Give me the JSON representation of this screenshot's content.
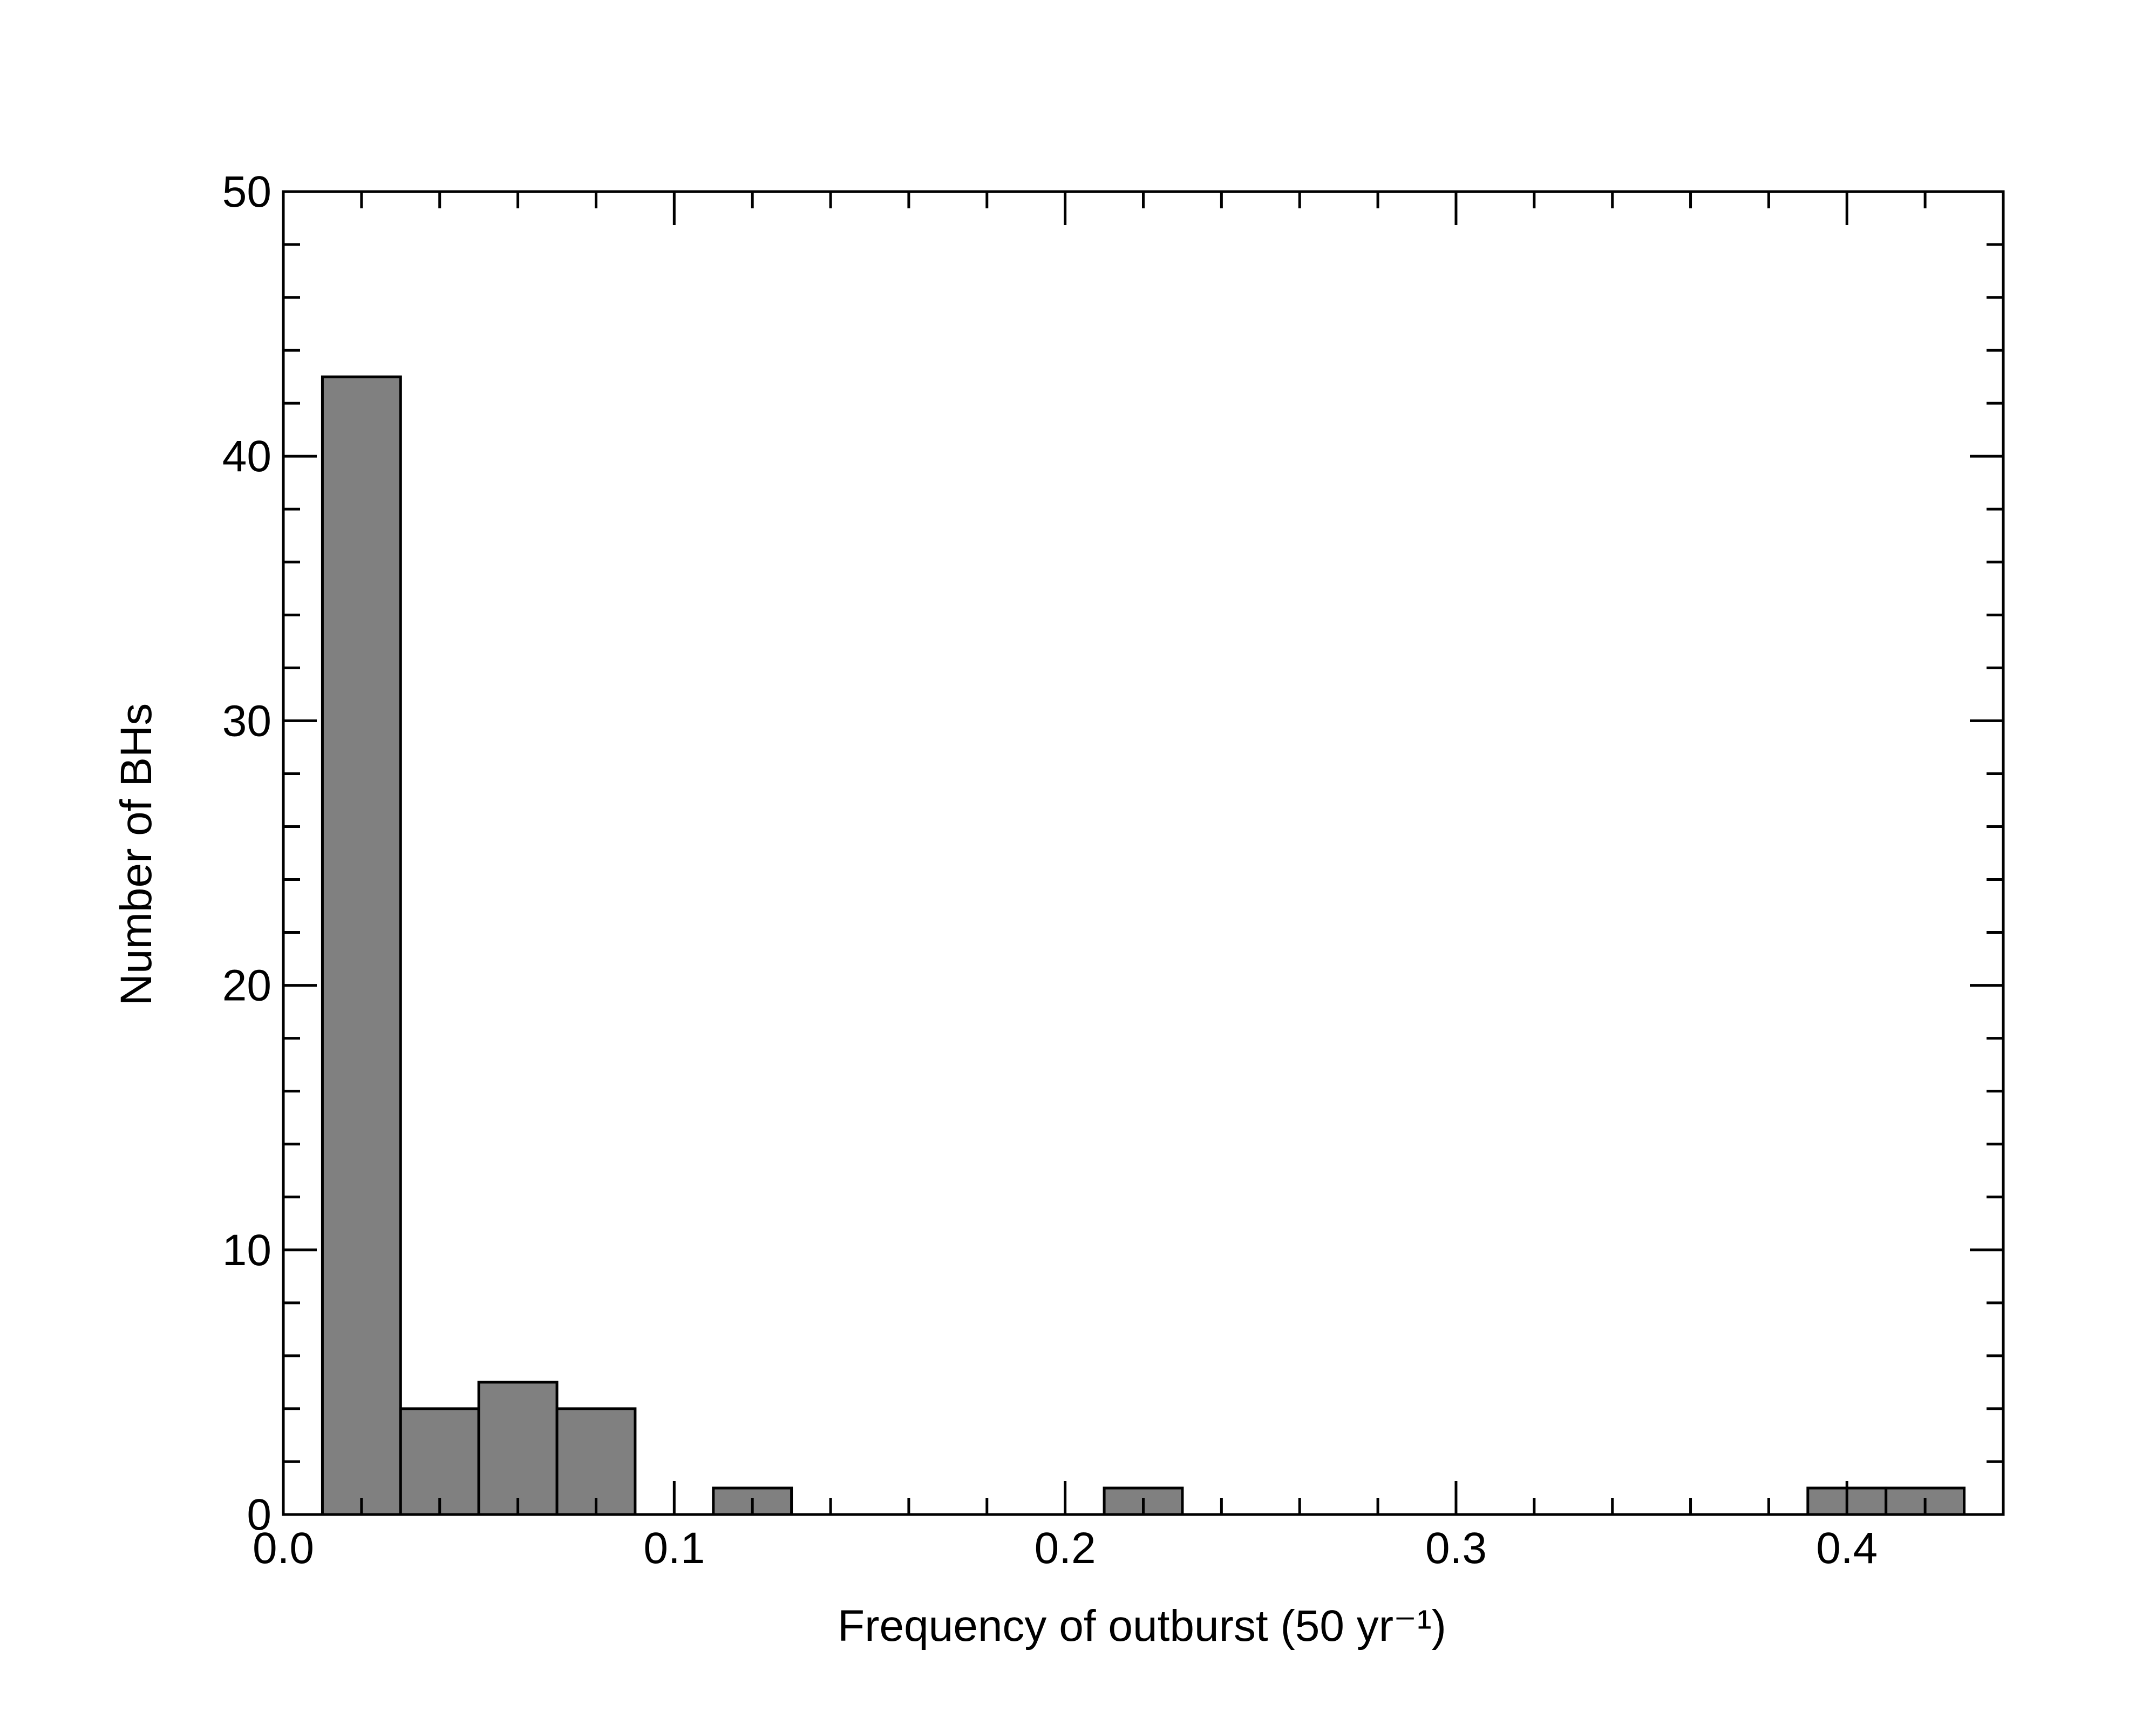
{
  "chart_data": {
    "type": "histogram",
    "xlabel": "Frequency of outburst (50 yr⁻¹)",
    "ylabel": "Number of BHs",
    "bins": [
      0.01,
      0.03,
      0.05,
      0.07,
      0.09,
      0.11,
      0.13,
      0.15,
      0.17,
      0.19,
      0.21,
      0.23,
      0.25,
      0.27,
      0.29,
      0.31,
      0.33,
      0.35,
      0.37,
      0.39,
      0.41,
      0.43
    ],
    "counts": [
      43,
      4,
      5,
      4,
      0,
      1,
      0,
      0,
      0,
      0,
      1,
      0,
      0,
      0,
      0,
      0,
      0,
      0,
      0,
      1,
      1
    ],
    "color": "#808080",
    "xlim": [
      0,
      0.44
    ],
    "ylim": [
      0,
      50
    ],
    "xticks": [
      {
        "value": 0,
        "label": "0.0"
      },
      0.1,
      0.2,
      0.3,
      0.4
    ],
    "yticks": [
      0,
      10,
      20,
      30,
      40,
      50
    ],
    "grid": false
  }
}
